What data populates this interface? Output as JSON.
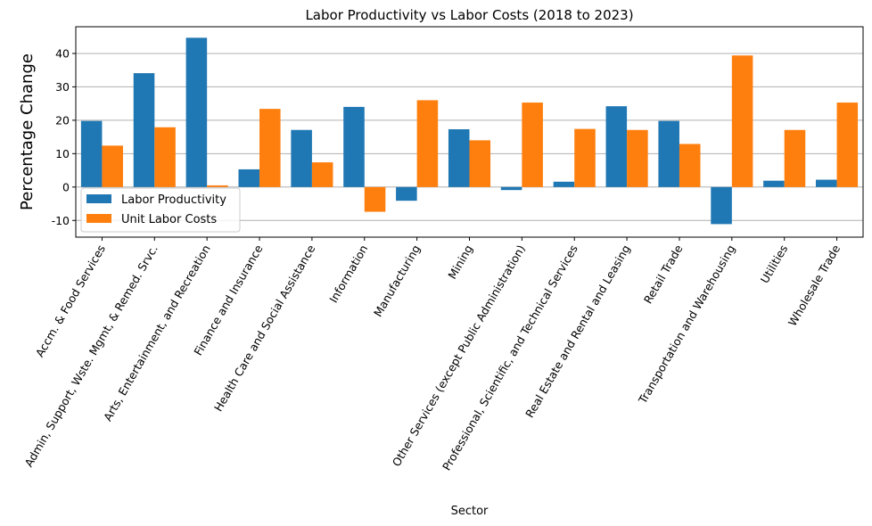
{
  "chart_data": {
    "type": "bar",
    "title": "Labor Productivity vs Labor Costs (2018 to 2023)",
    "xlabel": "Sector",
    "ylabel": "Percentage Change",
    "ylim": [
      -15,
      48
    ],
    "yticks": [
      -10,
      0,
      10,
      20,
      30,
      40
    ],
    "grid": "horizontal",
    "legend_position": "lower-left",
    "categories": [
      "Accm. & Food Services",
      "Admin, Support, Wste. Mgmt, & Remed. Srvc.",
      "Arts, Entertainment, and Recreation",
      "Finance and Insurance",
      "Health Care and Social Assistance",
      "Information",
      "Manufacturing",
      "Mining",
      "Other Services (except Public Administration)",
      "Professional, Scientific, and Technical Services",
      "Real Estate and Rental and Leasing",
      "Retail Trade",
      "Transportation and Warehousing",
      "Utilities",
      "Wholesale Trade"
    ],
    "series": [
      {
        "name": "Labor Productivity",
        "color": "#1f77b4",
        "values": [
          19.8,
          34.1,
          44.7,
          5.3,
          17.1,
          24.0,
          -4.1,
          17.3,
          -0.9,
          1.6,
          24.2,
          19.8,
          -11.1,
          1.9,
          2.2
        ]
      },
      {
        "name": "Unit Labor Costs",
        "color": "#ff7f0e",
        "values": [
          12.4,
          17.9,
          0.5,
          23.4,
          7.4,
          -7.4,
          26.0,
          14.0,
          25.3,
          17.4,
          17.1,
          12.9,
          39.4,
          17.1,
          25.3
        ]
      }
    ]
  }
}
